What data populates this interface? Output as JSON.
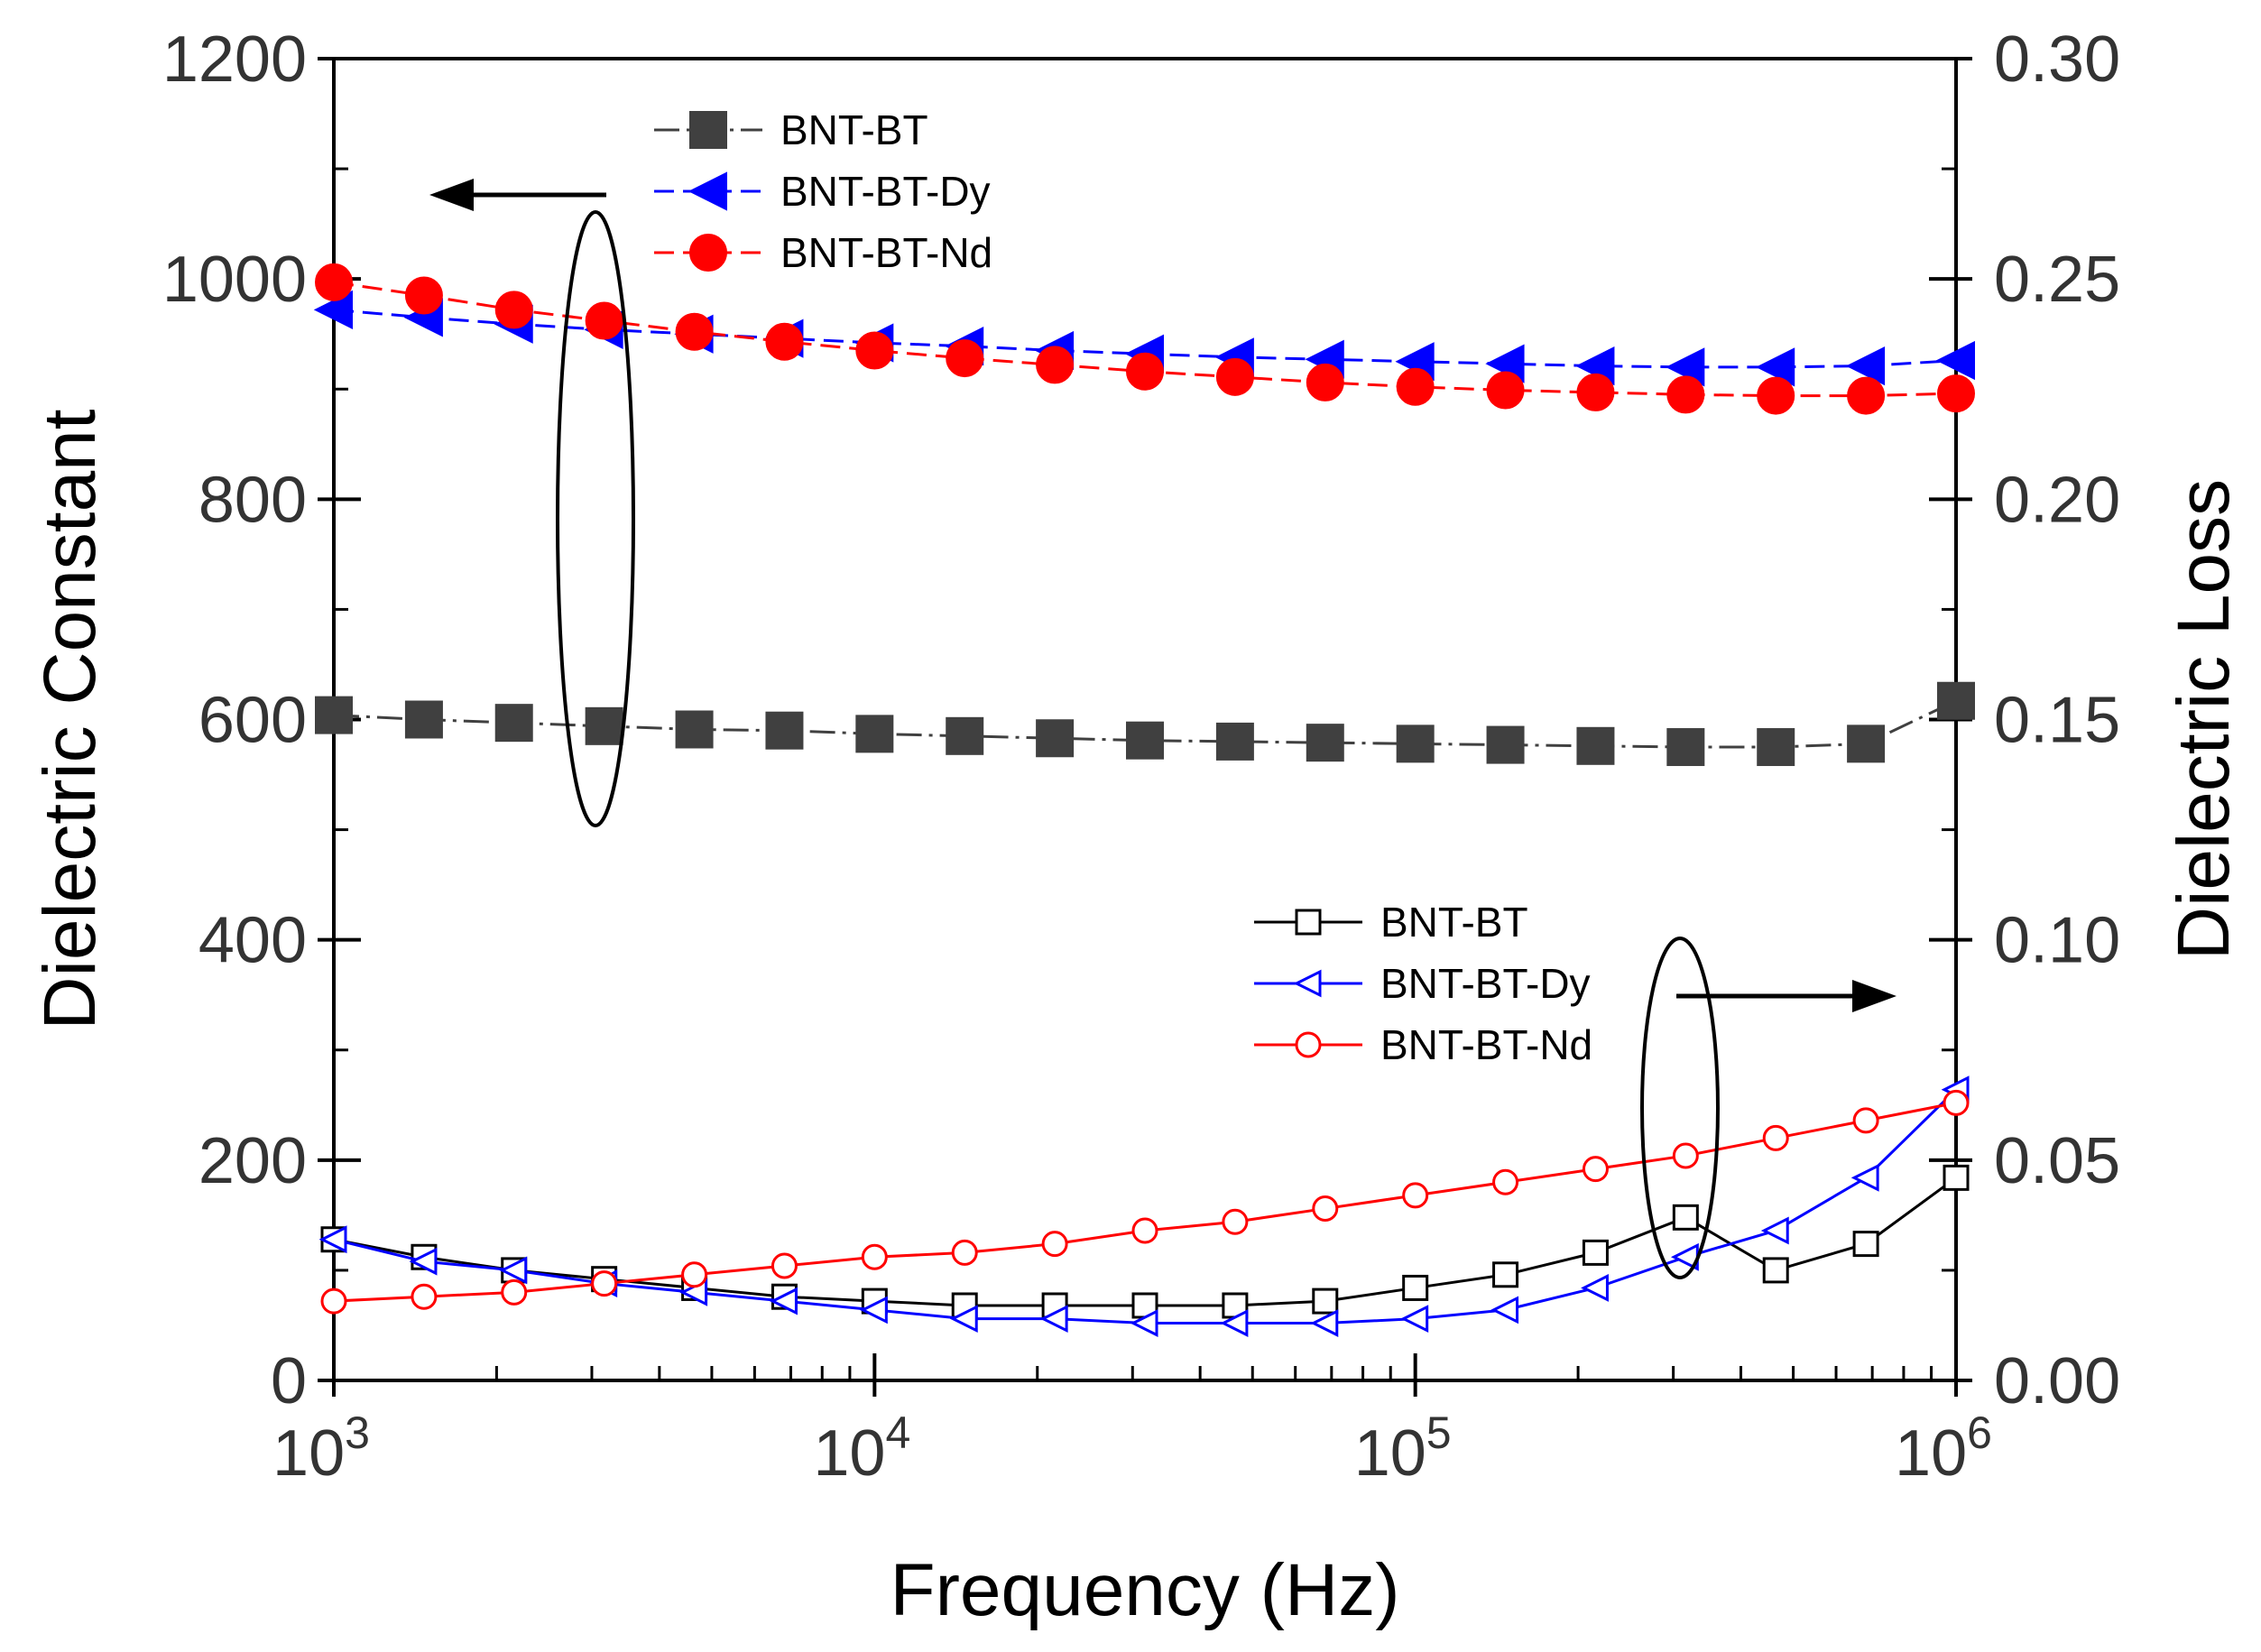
{
  "chart_data": {
    "type": "line",
    "x_label": "Frequency (Hz)",
    "y_left_label": "Dielectric Constant",
    "y_right_label": "Dielectric Loss",
    "x_scale": "log",
    "x_range": [
      1000,
      1000000
    ],
    "x_ticks": [
      {
        "value": 1000,
        "base": "10",
        "exp": "3"
      },
      {
        "value": 10000,
        "base": "10",
        "exp": "4"
      },
      {
        "value": 100000,
        "base": "10",
        "exp": "5"
      },
      {
        "value": 1000000,
        "base": "10",
        "exp": "6"
      }
    ],
    "y_left_range": [
      0,
      1200
    ],
    "y_left_ticks": [
      "0",
      "200",
      "400",
      "600",
      "800",
      "1000",
      "1200"
    ],
    "y_right_range": [
      0,
      0.3
    ],
    "y_right_ticks": [
      "0.00",
      "0.05",
      "0.10",
      "0.15",
      "0.20",
      "0.25",
      "0.30"
    ],
    "x": [
      1000,
      1468,
      2154,
      3162,
      4642,
      6813,
      10000,
      14678,
      21544,
      31623,
      46416,
      68129,
      100000,
      146780,
      215443,
      316228,
      464159,
      681292,
      1000000
    ],
    "dielectric_constant_series": [
      {
        "name": "BNT-BT",
        "color": "#404040",
        "marker": "square",
        "filled": true,
        "values": [
          604,
          600,
          597,
          594,
          591,
          590,
          587,
          585,
          583,
          581,
          580,
          579,
          578,
          577,
          576,
          575,
          575,
          578,
          617
        ]
      },
      {
        "name": "BNT-BT-Dy",
        "color": "#0000ff",
        "marker": "triangle-left",
        "filled": true,
        "values": [
          972,
          965,
          959,
          954,
          950,
          946,
          942,
          939,
          935,
          932,
          929,
          927,
          925,
          923,
          921,
          920,
          920,
          921,
          926
        ]
      },
      {
        "name": "BNT-BT-Nd",
        "color": "#ff0000",
        "marker": "circle",
        "filled": true,
        "values": [
          997,
          985,
          972,
          962,
          952,
          943,
          935,
          928,
          922,
          916,
          911,
          906,
          902,
          899,
          897,
          895,
          894,
          894,
          896
        ]
      }
    ],
    "dielectric_loss_series": [
      {
        "name": "BNT-BT",
        "color": "#000000",
        "marker": "square",
        "filled": false,
        "values": [
          0.032,
          0.028,
          0.025,
          0.023,
          0.021,
          0.019,
          0.018,
          0.017,
          0.017,
          0.017,
          0.017,
          0.018,
          0.021,
          0.024,
          0.029,
          0.037,
          0.025,
          0.031,
          0.046
        ]
      },
      {
        "name": "BNT-BT-Dy",
        "color": "#0000ff",
        "marker": "triangle-left",
        "filled": false,
        "values": [
          0.032,
          0.027,
          0.025,
          0.022,
          0.02,
          0.018,
          0.016,
          0.014,
          0.014,
          0.013,
          0.013,
          0.013,
          0.014,
          0.016,
          0.021,
          0.028,
          0.034,
          0.046,
          0.066
        ]
      },
      {
        "name": "BNT-BT-Nd",
        "color": "#ff0000",
        "marker": "circle",
        "filled": false,
        "values": [
          0.018,
          0.019,
          0.02,
          0.022,
          0.024,
          0.026,
          0.028,
          0.029,
          0.031,
          0.034,
          0.036,
          0.039,
          0.042,
          0.045,
          0.048,
          0.051,
          0.055,
          0.059,
          0.063
        ]
      }
    ],
    "legend_top": [
      "BNT-BT",
      "BNT-BT-Dy",
      "BNT-BT-Nd"
    ],
    "legend_bottom": [
      "BNT-BT",
      "BNT-BT-Dy",
      "BNT-BT-Nd"
    ],
    "annotations": [
      {
        "type": "arrow",
        "direction": "left",
        "points_to": "left y-axis"
      },
      {
        "type": "arrow",
        "direction": "right",
        "points_to": "right y-axis"
      }
    ]
  }
}
